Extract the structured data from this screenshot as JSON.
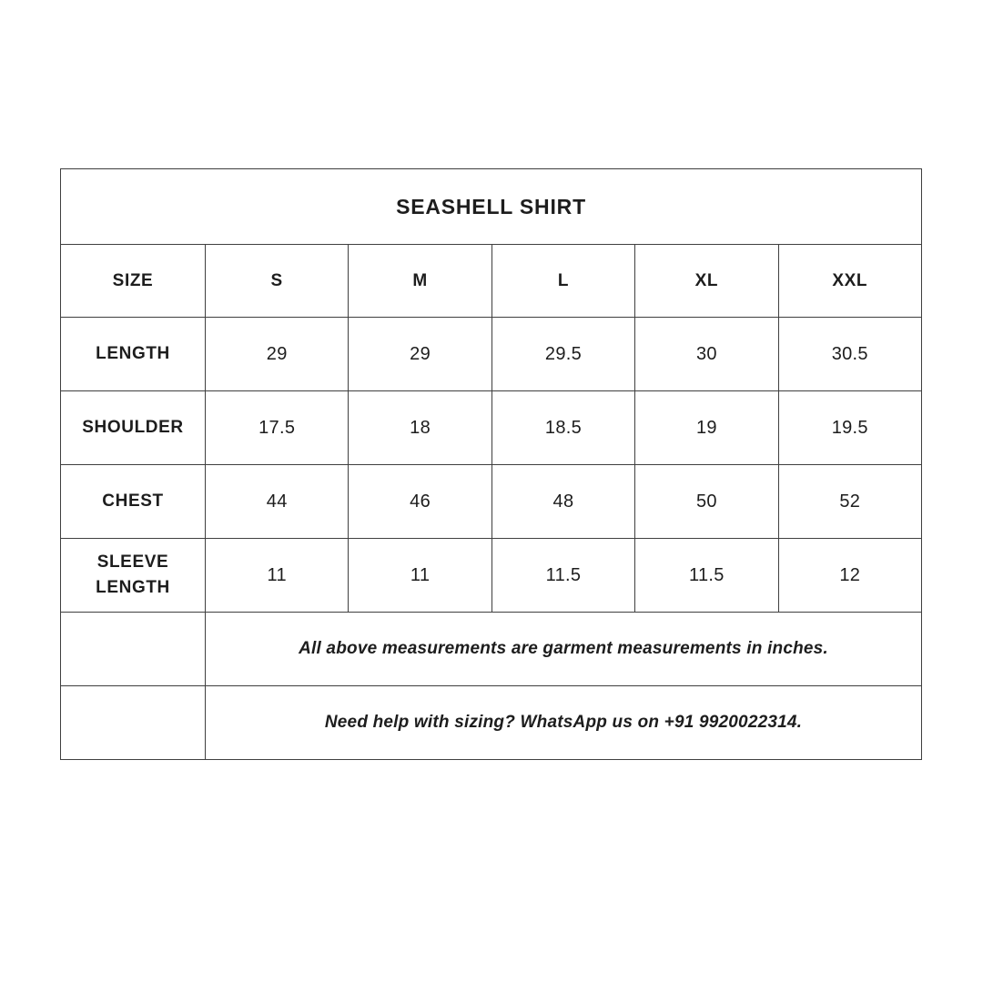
{
  "title": "SEASHELL SHIRT",
  "colors": {
    "background": "#ffffff",
    "text": "#1d1d1d",
    "border": "#3f3f3f"
  },
  "size_table": {
    "header": [
      "SIZE",
      "S",
      "M",
      "L",
      "XL",
      "XXL"
    ],
    "rows": [
      {
        "label": "LENGTH",
        "values": [
          "29",
          "29",
          "29.5",
          "30",
          "30.5"
        ]
      },
      {
        "label": "SHOULDER",
        "values": [
          "17.5",
          "18",
          "18.5",
          "19",
          "19.5"
        ]
      },
      {
        "label": "CHEST",
        "values": [
          "44",
          "46",
          "48",
          "50",
          "52"
        ]
      },
      {
        "label": "SLEEVE LENGTH",
        "values": [
          "11",
          "11",
          "11.5",
          "11.5",
          "12"
        ]
      }
    ],
    "notes": [
      "All above measurements are garment measurements in inches.",
      "Need help with sizing? WhatsApp us on +91 9920022314."
    ]
  },
  "chart_data": {
    "type": "table",
    "title": "SEASHELL SHIRT",
    "columns": [
      "SIZE",
      "S",
      "M",
      "L",
      "XL",
      "XXL"
    ],
    "rows": [
      [
        "LENGTH",
        29,
        29,
        29.5,
        30,
        30.5
      ],
      [
        "SHOULDER",
        17.5,
        18,
        18.5,
        19,
        19.5
      ],
      [
        "CHEST",
        44,
        46,
        48,
        50,
        52
      ],
      [
        "SLEEVE LENGTH",
        11,
        11,
        11.5,
        11.5,
        12
      ]
    ],
    "units": "inches",
    "footnotes": [
      "All above measurements are garment measurements in inches.",
      "Need help with sizing? WhatsApp us on +91 9920022314."
    ]
  }
}
